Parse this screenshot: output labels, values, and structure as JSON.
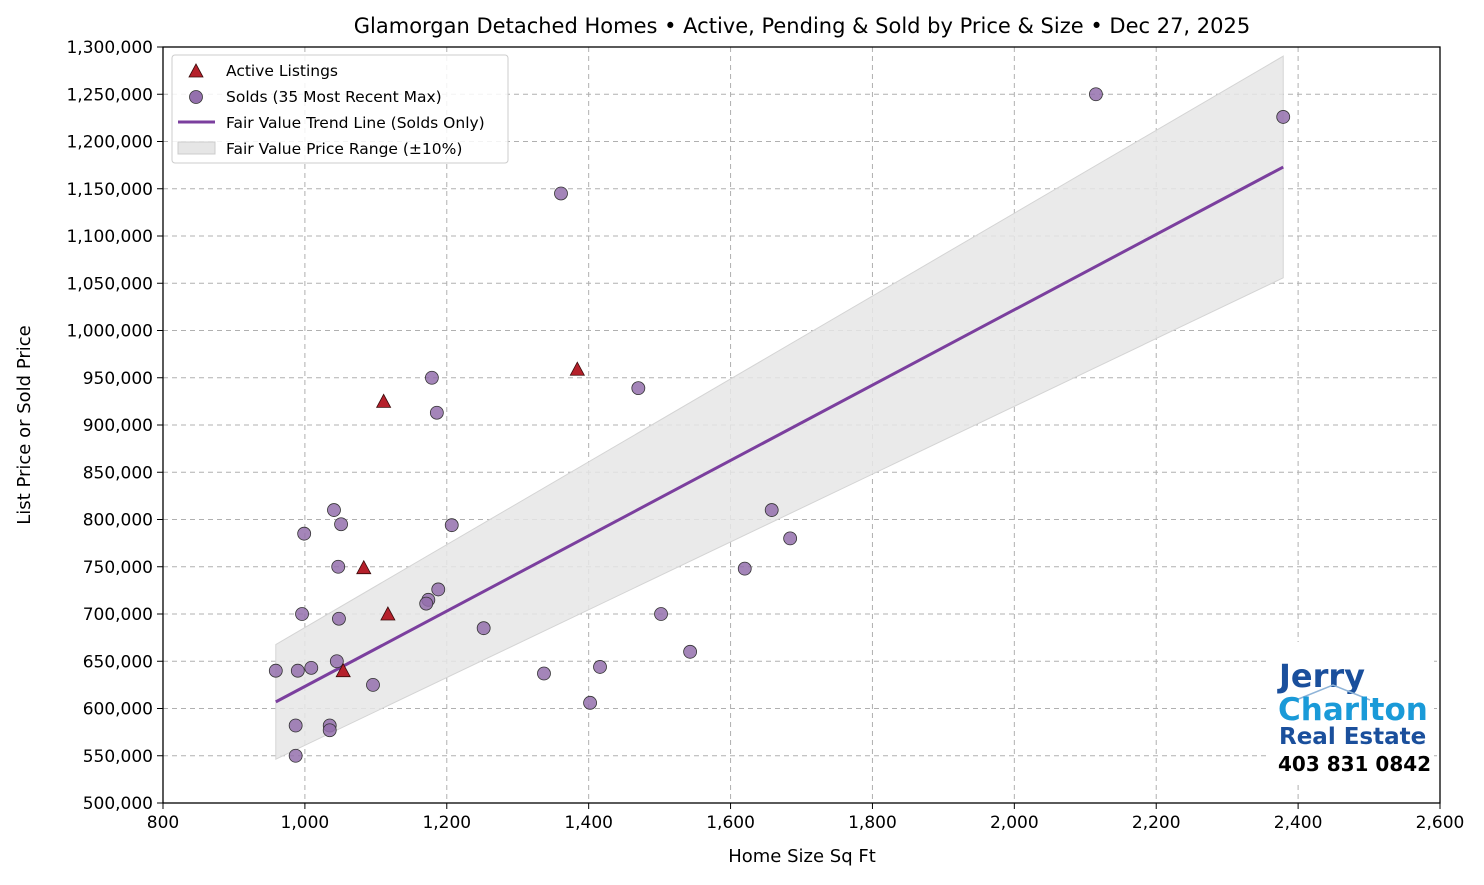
{
  "chart_data": {
    "type": "scatter",
    "title": "Glamorgan Detached Homes • Active, Pending & Sold by Price & Size • Dec 27, 2025",
    "xlabel": "Home Size Sq Ft",
    "ylabel": "List Price or Sold Price",
    "xlim": [
      800,
      2600
    ],
    "ylim": [
      500000,
      1300000
    ],
    "xticks": [
      800,
      1000,
      1200,
      1400,
      1600,
      1800,
      2000,
      2200,
      2400,
      2600
    ],
    "xtick_labels": [
      "800",
      "1,000",
      "1,200",
      "1,400",
      "1,600",
      "1,800",
      "2,000",
      "2,200",
      "2,400",
      "2,600"
    ],
    "yticks": [
      500000,
      550000,
      600000,
      650000,
      700000,
      750000,
      800000,
      850000,
      900000,
      950000,
      1000000,
      1050000,
      1100000,
      1150000,
      1200000,
      1250000,
      1300000
    ],
    "ytick_labels": [
      "500,000",
      "550,000",
      "600,000",
      "650,000",
      "700,000",
      "750,000",
      "800,000",
      "850,000",
      "900,000",
      "950,000",
      "1,000,000",
      "1,050,000",
      "1,100,000",
      "1,150,000",
      "1,200,000",
      "1,250,000",
      "1,300,000"
    ],
    "grid": true,
    "legend_placement": "top-left",
    "colors": {
      "active": "#b5202b",
      "sold": "#9470ad",
      "trend": "#7b3f9e",
      "band": "#e6e6e6"
    },
    "series": [
      {
        "name": "Active Listings",
        "marker": "triangle",
        "points": [
          [
            1111,
            925000
          ],
          [
            1384,
            959000
          ],
          [
            1083,
            749000
          ],
          [
            1117,
            700000
          ],
          [
            1054,
            640000
          ]
        ]
      },
      {
        "name": "Solds (35 Most Recent Max)",
        "marker": "circle",
        "points": [
          [
            959,
            640000
          ],
          [
            987,
            550000
          ],
          [
            987,
            582000
          ],
          [
            990,
            640000
          ],
          [
            999,
            785000
          ],
          [
            996,
            700000
          ],
          [
            1009,
            643000
          ],
          [
            1041,
            810000
          ],
          [
            1051,
            795000
          ],
          [
            1047,
            750000
          ],
          [
            1048,
            695000
          ],
          [
            1045,
            650000
          ],
          [
            1035,
            582000
          ],
          [
            1035,
            577000
          ],
          [
            1096,
            625000
          ],
          [
            1179,
            950000
          ],
          [
            1186,
            913000
          ],
          [
            1207,
            794000
          ],
          [
            1188,
            726000
          ],
          [
            1174,
            715000
          ],
          [
            1171,
            711000
          ],
          [
            1252,
            685000
          ],
          [
            1361,
            1145000
          ],
          [
            1337,
            637000
          ],
          [
            1402,
            606000
          ],
          [
            1416,
            644000
          ],
          [
            1470,
            939000
          ],
          [
            1502,
            700000
          ],
          [
            1543,
            660000
          ],
          [
            1620,
            748000
          ],
          [
            1658,
            810000
          ],
          [
            1684,
            780000
          ],
          [
            2115,
            1250000
          ],
          [
            2379,
            1226000
          ]
        ]
      },
      {
        "name": "Fair Value Trend Line (Solds Only)",
        "type": "line",
        "points": [
          [
            959,
            607000
          ],
          [
            2379,
            1173000
          ]
        ]
      },
      {
        "name": "Fair Value Price Range (±10%)",
        "type": "band",
        "band_pct": 10
      }
    ]
  },
  "logo": {
    "line1": "Jerry",
    "line2": "Charlton",
    "line3": "Real Estate",
    "phone": "403 831 0842"
  }
}
